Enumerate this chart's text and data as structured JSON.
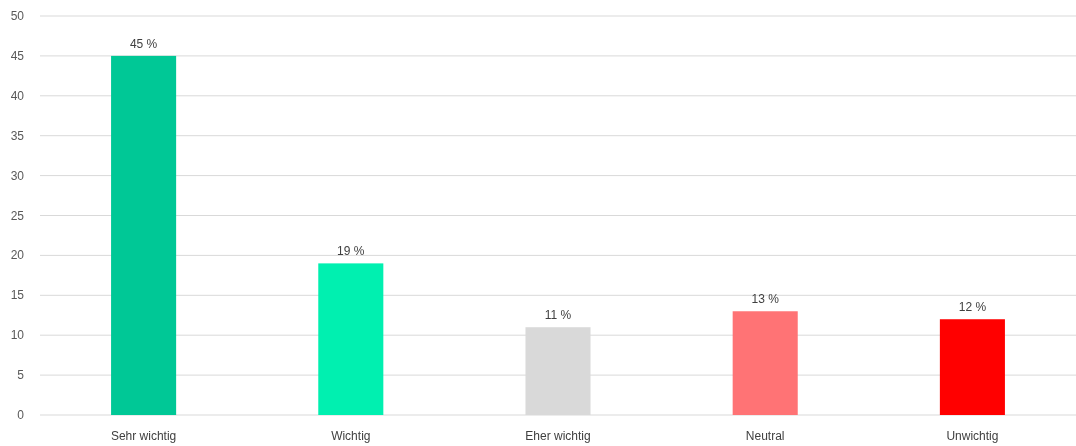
{
  "chart_data": {
    "type": "bar",
    "categories": [
      "Sehr wichtig",
      "Wichtig",
      "Eher wichtig",
      "Neutral",
      "Unwichtig"
    ],
    "values": [
      45,
      19,
      11,
      13,
      12
    ],
    "colors": [
      "#00c896",
      "#00f0b0",
      "#d9d9d9",
      "#ff7375",
      "#ff0000"
    ],
    "value_labels": [
      "45 %",
      "19 %",
      "11 %",
      "13 %",
      "12 %"
    ],
    "ylim": [
      0,
      50
    ],
    "yticks": [
      0,
      5,
      10,
      15,
      20,
      25,
      30,
      35,
      40,
      45,
      50
    ],
    "grid": "y"
  }
}
